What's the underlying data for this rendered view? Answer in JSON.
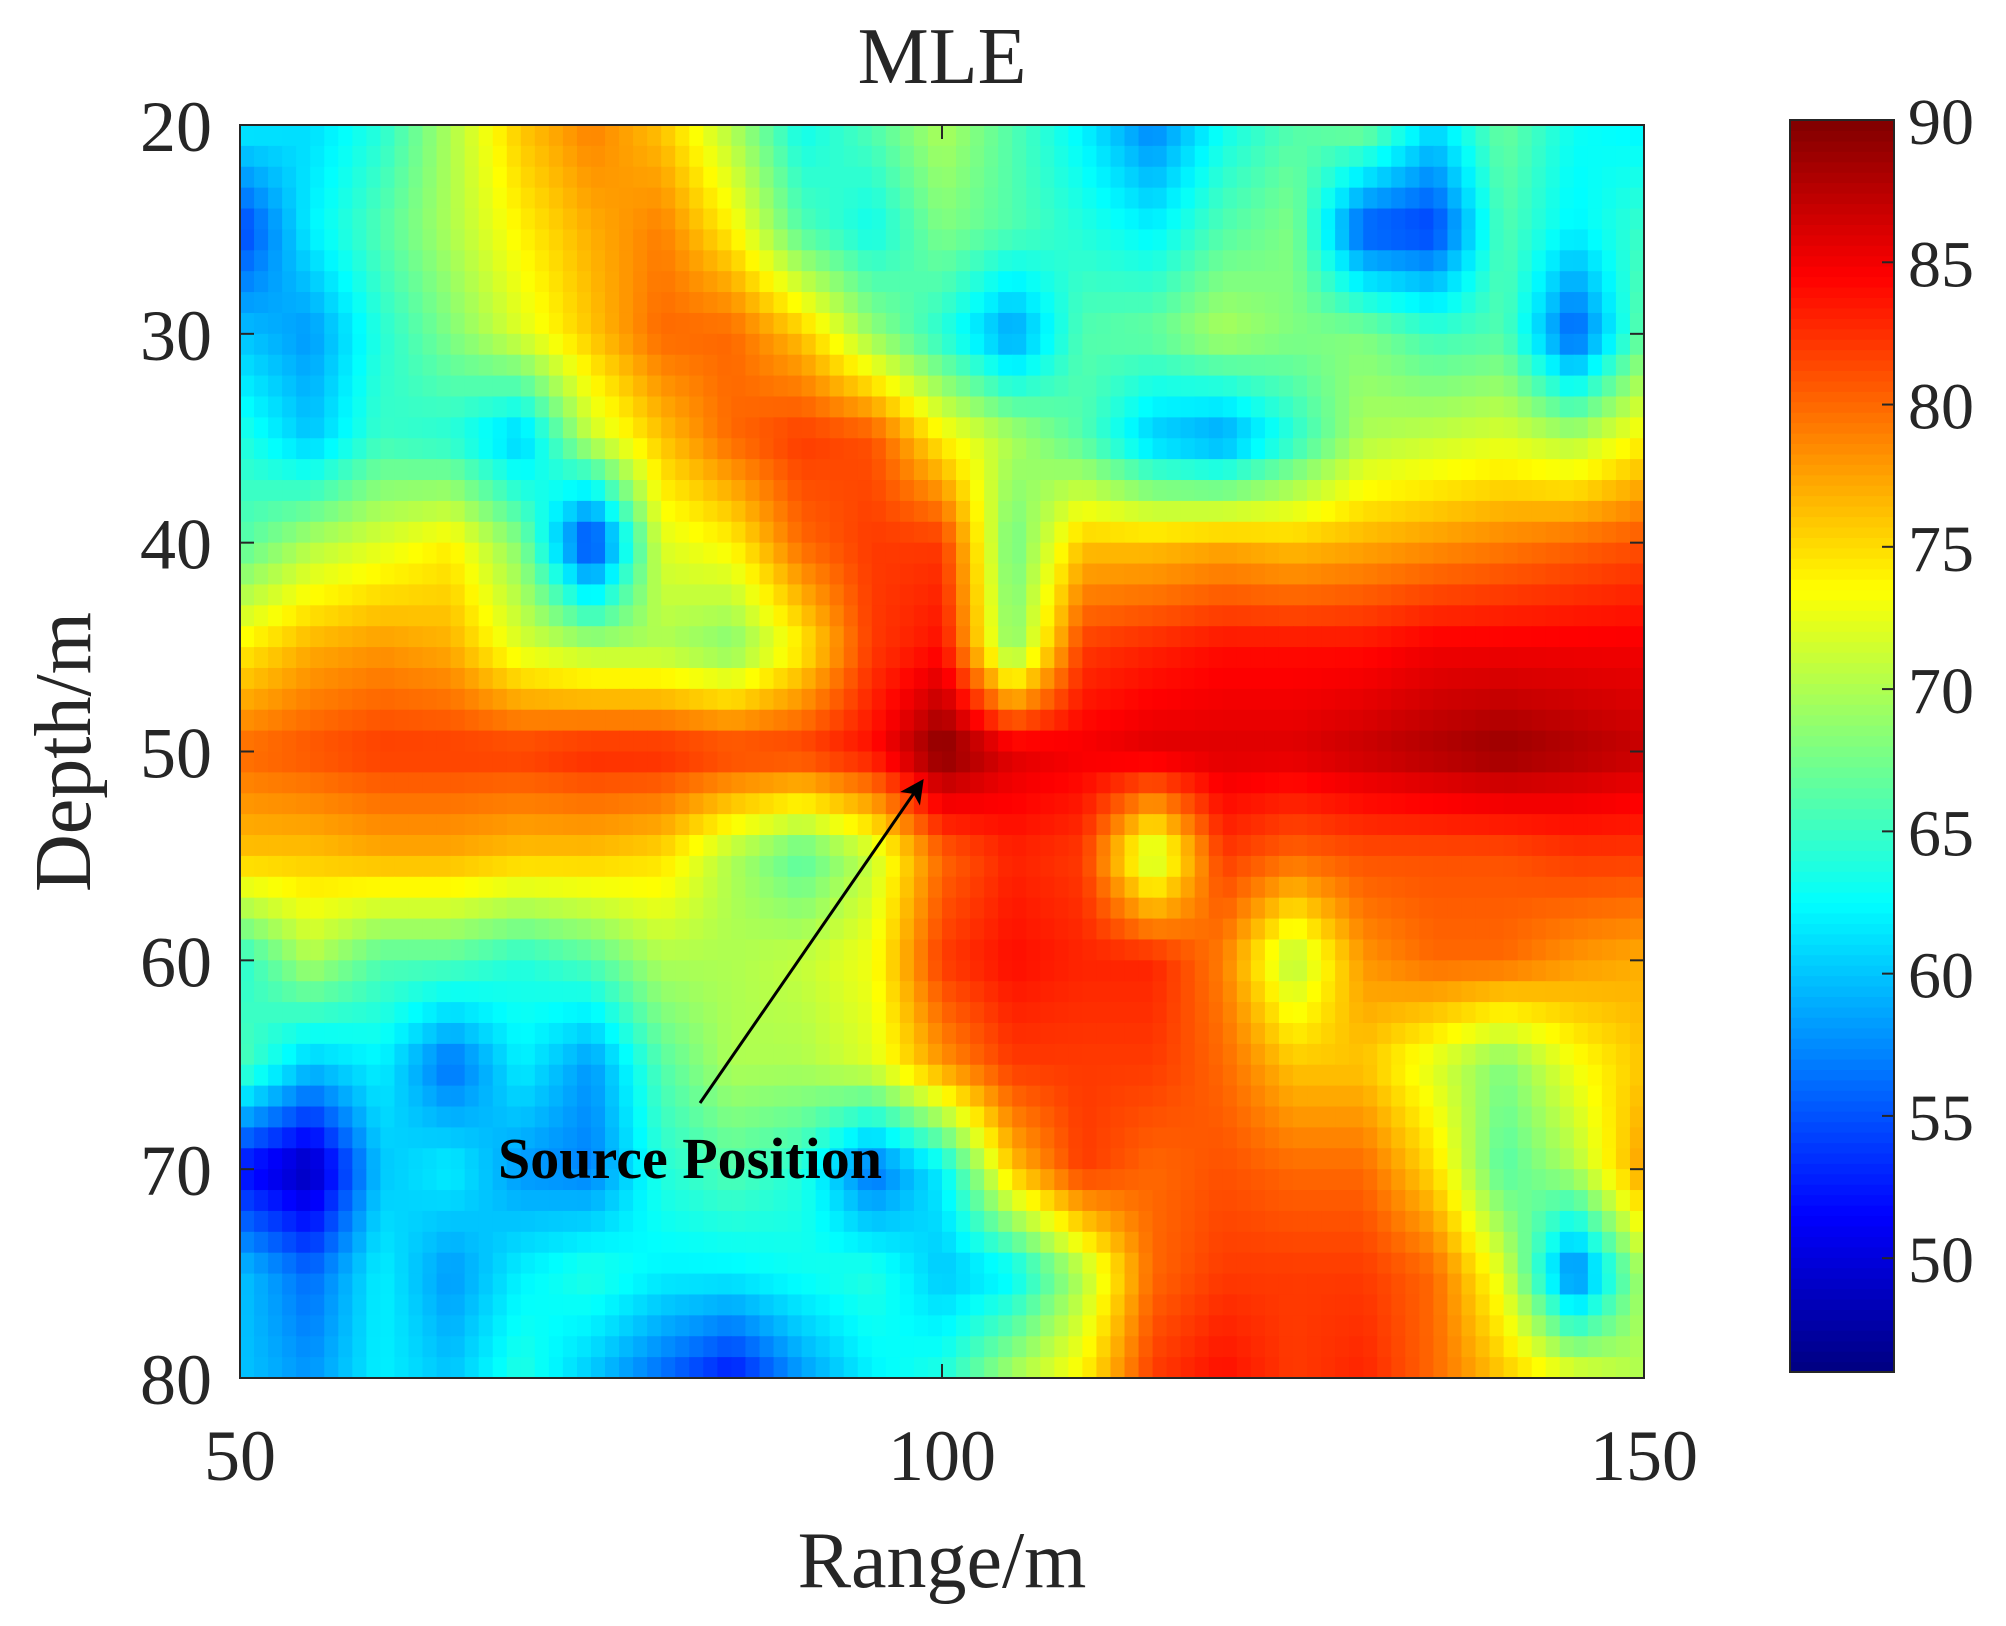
{
  "chart_data": {
    "type": "heatmap",
    "title": "MLE",
    "xlabel": "Range/m",
    "ylabel": "Depth/m",
    "xlim": [
      50,
      150
    ],
    "ylim": [
      20,
      80
    ],
    "y_reversed": true,
    "x": [
      50,
      55,
      60,
      65,
      70,
      75,
      80,
      85,
      90,
      95,
      100,
      105,
      110,
      115,
      120,
      125,
      130,
      135,
      140,
      145,
      150
    ],
    "y": [
      20,
      25,
      30,
      35,
      40,
      45,
      50,
      55,
      60,
      65,
      70,
      75,
      80
    ],
    "z": [
      [
        62,
        61,
        64,
        70,
        76,
        79,
        76,
        70,
        63,
        66,
        70,
        66,
        62,
        57,
        63,
        66,
        68,
        61,
        67,
        63,
        62
      ],
      [
        54,
        62,
        66,
        70,
        74,
        77,
        79,
        74,
        66,
        63,
        68,
        66,
        64,
        62,
        66,
        68,
        55,
        54,
        66,
        62,
        65
      ],
      [
        60,
        58,
        64,
        68,
        72,
        76,
        80,
        80,
        76,
        69,
        64,
        58,
        66,
        67,
        70,
        68,
        68,
        65,
        66,
        55,
        67
      ],
      [
        64,
        60,
        65,
        64,
        60,
        71,
        76,
        80,
        82,
        81,
        74,
        70,
        66,
        60,
        58,
        64,
        70,
        71,
        72,
        70,
        74
      ],
      [
        66,
        70,
        72,
        74,
        68,
        53,
        72,
        74,
        80,
        82,
        82,
        67,
        76,
        76,
        77,
        76,
        77,
        78,
        79,
        80,
        81
      ],
      [
        74,
        77,
        78,
        77,
        72,
        70,
        70,
        68,
        74,
        82,
        84,
        68,
        82,
        83,
        84,
        84,
        84,
        85,
        85,
        85,
        85
      ],
      [
        80,
        81,
        82,
        82,
        82,
        83,
        83,
        82,
        82,
        84,
        90,
        86,
        85,
        86,
        86,
        86,
        87,
        88,
        89,
        88,
        87
      ],
      [
        76,
        76,
        77,
        77,
        76,
        76,
        75,
        70,
        66,
        71,
        80,
        83,
        82,
        70,
        82,
        80,
        81,
        81,
        81,
        82,
        82
      ],
      [
        64,
        70,
        66,
        66,
        64,
        66,
        70,
        70,
        71,
        73,
        82,
        84,
        83,
        83,
        79,
        70,
        78,
        80,
        80,
        78,
        77
      ],
      [
        66,
        60,
        62,
        56,
        62,
        58,
        66,
        70,
        70,
        72,
        78,
        82,
        82,
        82,
        80,
        76,
        76,
        72,
        68,
        73,
        76
      ],
      [
        52,
        48,
        60,
        62,
        58,
        57,
        64,
        66,
        64,
        56,
        62,
        76,
        82,
        80,
        81,
        80,
        80,
        75,
        66,
        70,
        78
      ],
      [
        60,
        56,
        62,
        58,
        62,
        64,
        62,
        62,
        63,
        64,
        60,
        62,
        70,
        80,
        82,
        82,
        82,
        80,
        72,
        56,
        70
      ],
      [
        60,
        58,
        62,
        60,
        64,
        60,
        56,
        52,
        58,
        62,
        64,
        70,
        74,
        82,
        84,
        82,
        83,
        80,
        76,
        73,
        70
      ]
    ],
    "xticks": [
      "50",
      "100",
      "150"
    ],
    "yticks": [
      "20",
      "30",
      "40",
      "50",
      "60",
      "70",
      "80"
    ],
    "colorbar": {
      "min": 46,
      "max": 90,
      "ticks": [
        "50",
        "55",
        "60",
        "65",
        "70",
        "75",
        "80",
        "85",
        "90"
      ],
      "colormap": "jet"
    },
    "annotation": {
      "text": "Source Position",
      "points_to": [
        100,
        50
      ]
    }
  }
}
